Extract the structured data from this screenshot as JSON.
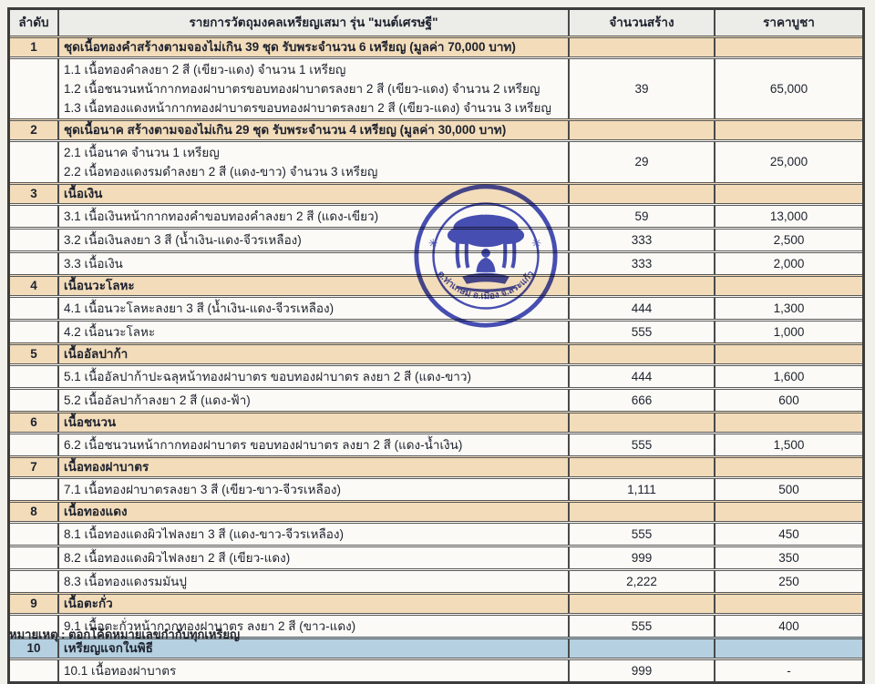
{
  "table": {
    "header": {
      "col_no": "ลำดับ",
      "col_item": "รายการวัตถุมงคลเหรียญเสมา รุ่น \"มนต์เศรษฐี\"",
      "col_qty": "จำนวนสร้าง",
      "col_price": "ราคาบูชา"
    },
    "rows": [
      {
        "kind": "group",
        "no": "1",
        "label": "ชุดเนื้อทองคำสร้างตามจองไม่เกิน 39 ชุด รับพระจำนวน 6 เหรียญ  (มูลค่า 70,000 บาท)",
        "qty": "",
        "price": ""
      },
      {
        "kind": "detail",
        "lines": [
          "1.1 เนื้อทองคำลงยา 2 สี (เขียว-แดง) จำนวน 1 เหรียญ",
          "1.2 เนื้อชนวนหน้ากากทองฝาบาตรขอบทองฝาบาตรลงยา 2 สี (เขียว-แดง) จำนวน 2 เหรียญ",
          "1.3 เนื้อทองแดงหน้ากากทองฝาบาตรขอบทองฝาบาตรลงยา 2 สี (เขียว-แดง) จำนวน 3 เหรียญ"
        ],
        "qty": "39",
        "price": "65,000"
      },
      {
        "kind": "group",
        "no": "2",
        "label": "ชุดเนื้อนาค สร้างตามจองไม่เกิน  29 ชุด รับพระจำนวน 4 เหรียญ  (มูลค่า 30,000 บาท)",
        "qty": "",
        "price": ""
      },
      {
        "kind": "detail",
        "lines": [
          "2.1 เนื้อนาค จำนวน 1 เหรียญ",
          "2.2 เนื้อทองแดงรมดำลงยา 2 สี (แดง-ขาว) จำนวน 3 เหรียญ"
        ],
        "qty": "29",
        "price": "25,000"
      },
      {
        "kind": "group",
        "no": "3",
        "label": "เนื้อเงิน",
        "qty": "",
        "price": ""
      },
      {
        "kind": "detail",
        "lines": [
          "3.1 เนื้อเงินหน้ากากทองคำขอบทองคำลงยา 2 สี (แดง-เขียว)"
        ],
        "qty": "59",
        "price": "13,000"
      },
      {
        "kind": "detail",
        "lines": [
          "3.2 เนื้อเงินลงยา 3 สี (น้ำเงิน-แดง-จีวรเหลือง)"
        ],
        "qty": "333",
        "price": "2,500"
      },
      {
        "kind": "detail",
        "lines": [
          "3.3 เนื้อเงิน"
        ],
        "qty": "333",
        "price": "2,000"
      },
      {
        "kind": "group",
        "no": "4",
        "label": "เนื้อนวะโลหะ",
        "qty": "",
        "price": ""
      },
      {
        "kind": "detail",
        "lines": [
          "4.1 เนื้อนวะโลหะลงยา 3 สี (น้ำเงิน-แดง-จีวรเหลือง)"
        ],
        "qty": "444",
        "price": "1,300"
      },
      {
        "kind": "detail",
        "lines": [
          "4.2 เนื้อนวะโลหะ"
        ],
        "qty": "555",
        "price": "1,000"
      },
      {
        "kind": "group",
        "no": "5",
        "label": "เนื้ออัลปาก้า",
        "qty": "",
        "price": ""
      },
      {
        "kind": "detail",
        "lines": [
          "5.1 เนื้ออัลปาก้าปะฉลุหน้าทองฝาบาตร ขอบทองฝาบาตร ลงยา 2 สี (แดง-ขาว)"
        ],
        "qty": "444",
        "price": "1,600"
      },
      {
        "kind": "detail",
        "lines": [
          "5.2 เนื้ออัลปาก้าลงยา 2 สี (แดง-ฟ้า)"
        ],
        "qty": "666",
        "price": "600"
      },
      {
        "kind": "group",
        "no": "6",
        "label": "เนื้อชนวน",
        "qty": "",
        "price": ""
      },
      {
        "kind": "detail",
        "lines": [
          "6.2 เนื้อชนวนหน้ากากทองฝาบาตร ขอบทองฝาบาตร ลงยา 2 สี (แดง-น้ำเงิน)"
        ],
        "qty": "555",
        "price": "1,500"
      },
      {
        "kind": "group",
        "no": "7",
        "label": "เนื้อทองฝาบาตร",
        "qty": "",
        "price": ""
      },
      {
        "kind": "detail",
        "lines": [
          "7.1 เนื้อทองฝาบาตรลงยา 3 สี (เขียว-ขาว-จีวรเหลือง)"
        ],
        "qty": "1,111",
        "price": "500"
      },
      {
        "kind": "group",
        "no": "8",
        "label": "เนื้อทองแดง",
        "qty": "",
        "price": ""
      },
      {
        "kind": "detail",
        "lines": [
          "8.1 เนื้อทองแดงผิวไฟลงยา 3 สี (แดง-ขาว-จีวรเหลือง)"
        ],
        "qty": "555",
        "price": "450"
      },
      {
        "kind": "detail",
        "lines": [
          "8.2 เนื้อทองแดงผิวไฟลงยา 2 สี (เขียว-แดง)"
        ],
        "qty": "999",
        "price": "350"
      },
      {
        "kind": "detail",
        "lines": [
          "8.3 เนื้อทองแดงรมมันปู"
        ],
        "qty": "2,222",
        "price": "250"
      },
      {
        "kind": "group",
        "no": "9",
        "label": "เนื้อตะกั่ว",
        "qty": "",
        "price": ""
      },
      {
        "kind": "detail",
        "lines": [
          "9.1 เนื้อตะกั่วหน้ากากทองฝาบาตร  ลงยา 2 สี (ขาว-แดง)"
        ],
        "qty": "555",
        "price": "400"
      },
      {
        "kind": "group",
        "no": "10",
        "label": "เหรียญแจกในพิธี",
        "qty": "",
        "price": "",
        "highlight": "blue"
      },
      {
        "kind": "detail",
        "lines": [
          "10.1 เนื้อทองฝาบาตร"
        ],
        "qty": "999",
        "price": "-"
      }
    ]
  },
  "footer_note": "หมายเหตุ : ตอกโค้ดหมายเลขกำกับทุกเหรียญ",
  "stamp": {
    "top_text": "วัดทุ่งพระ",
    "bottom_text": "ต.ท่าเกษม อ.เมือง จ.สระแก้ว",
    "left_mark": "✳",
    "right_mark": "✳",
    "color": "#2e36ae"
  },
  "colors": {
    "category_row_bg": "#f2dcba",
    "ceremony_row_bg": "#b5d0e0",
    "page_bg": "#f2f0ea",
    "stamp_blue": "#2e36ae"
  }
}
